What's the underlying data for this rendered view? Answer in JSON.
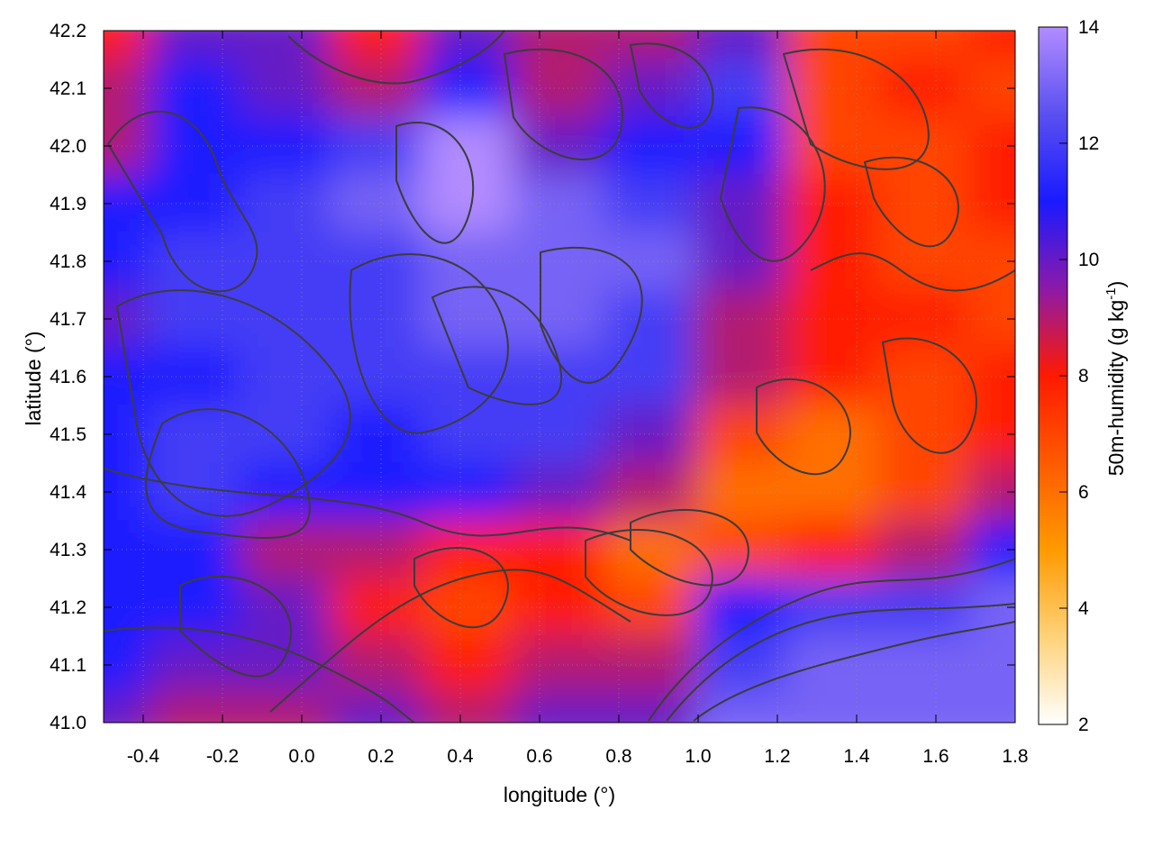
{
  "chart_data": {
    "type": "heatmap",
    "title": "",
    "xlabel": "longitude (°)",
    "ylabel": "latitude (°)",
    "colorbar_label_main": "50m-humidity (g kg",
    "colorbar_label_sup": "-1",
    "colorbar_label_end": ")",
    "xlim": [
      -0.5,
      1.8
    ],
    "ylim": [
      41.0,
      42.2
    ],
    "zlim": [
      2,
      14
    ],
    "x_ticks": [
      -0.4,
      -0.2,
      0.0,
      0.2,
      0.4,
      0.6,
      0.8,
      1.0,
      1.2,
      1.4,
      1.6,
      1.8
    ],
    "x_tick_labels": [
      "-0.4",
      "-0.2",
      "0.0",
      "0.2",
      "0.4",
      "0.6",
      "0.8",
      "1.0",
      "1.2",
      "1.4",
      "1.6",
      "1.8"
    ],
    "y_ticks": [
      41.0,
      41.1,
      41.2,
      41.3,
      41.4,
      41.5,
      41.6,
      41.7,
      41.8,
      41.9,
      42.0,
      42.1,
      42.2
    ],
    "y_tick_labels": [
      "41.0",
      "41.1",
      "41.2",
      "41.3",
      "41.4",
      "41.5",
      "41.6",
      "41.7",
      "41.8",
      "41.9",
      "42.0",
      "42.1",
      "42.2"
    ],
    "colorbar_ticks": [
      2,
      4,
      6,
      8,
      10,
      12,
      14
    ],
    "colorbar_tick_labels": [
      "2",
      "4",
      "6",
      "8",
      "10",
      "12",
      "14"
    ],
    "colormap": [
      "#ffffff",
      "#ffd27a",
      "#ff9a00",
      "#ff5a00",
      "#ff1a00",
      "#8c1aa8",
      "#1a1aff",
      "#5a50f0",
      "#b28cff"
    ],
    "contour_color": "#3c3c3c",
    "grid": true,
    "humidity_field": {
      "note_values_in": "g kg-1",
      "lon": [
        -0.5,
        -0.27,
        -0.04,
        0.19,
        0.42,
        0.65,
        0.88,
        1.11,
        1.34,
        1.57,
        1.8
      ],
      "lat": [
        42.2,
        42.1,
        42.0,
        41.9,
        41.8,
        41.7,
        41.6,
        41.5,
        41.4,
        41.3,
        41.2,
        41.1,
        41.0
      ],
      "values": [
        [
          8,
          10,
          10,
          8,
          10,
          9,
          9,
          10,
          7,
          7,
          8
        ],
        [
          9,
          11,
          10,
          9,
          11,
          9,
          10,
          12,
          7,
          8,
          7
        ],
        [
          9,
          11,
          11,
          12,
          14,
          10,
          11,
          11,
          7,
          7,
          8
        ],
        [
          11,
          11,
          12,
          13,
          14,
          13,
          12,
          10,
          8,
          7,
          8
        ],
        [
          11,
          12,
          12,
          12,
          13,
          13,
          13,
          10,
          8,
          7,
          7
        ],
        [
          10,
          12,
          12,
          12,
          13,
          13,
          12,
          9,
          8,
          8,
          7
        ],
        [
          11,
          11,
          12,
          12,
          12,
          12,
          12,
          9,
          8,
          7,
          8
        ],
        [
          11,
          12,
          12,
          11,
          12,
          12,
          10,
          7,
          6,
          7,
          8
        ],
        [
          11,
          12,
          11,
          11,
          11,
          10,
          9,
          6,
          6,
          7,
          9
        ],
        [
          11,
          11,
          9,
          9,
          8,
          8,
          6,
          7,
          8,
          9,
          11
        ],
        [
          11,
          11,
          10,
          8,
          7,
          8,
          7,
          11,
          12,
          12,
          13
        ],
        [
          11,
          10,
          10,
          9,
          8,
          9,
          9,
          12,
          13,
          13,
          13
        ],
        [
          10,
          9,
          9,
          10,
          9,
          10,
          10,
          13,
          13,
          13,
          13
        ]
      ]
    }
  }
}
